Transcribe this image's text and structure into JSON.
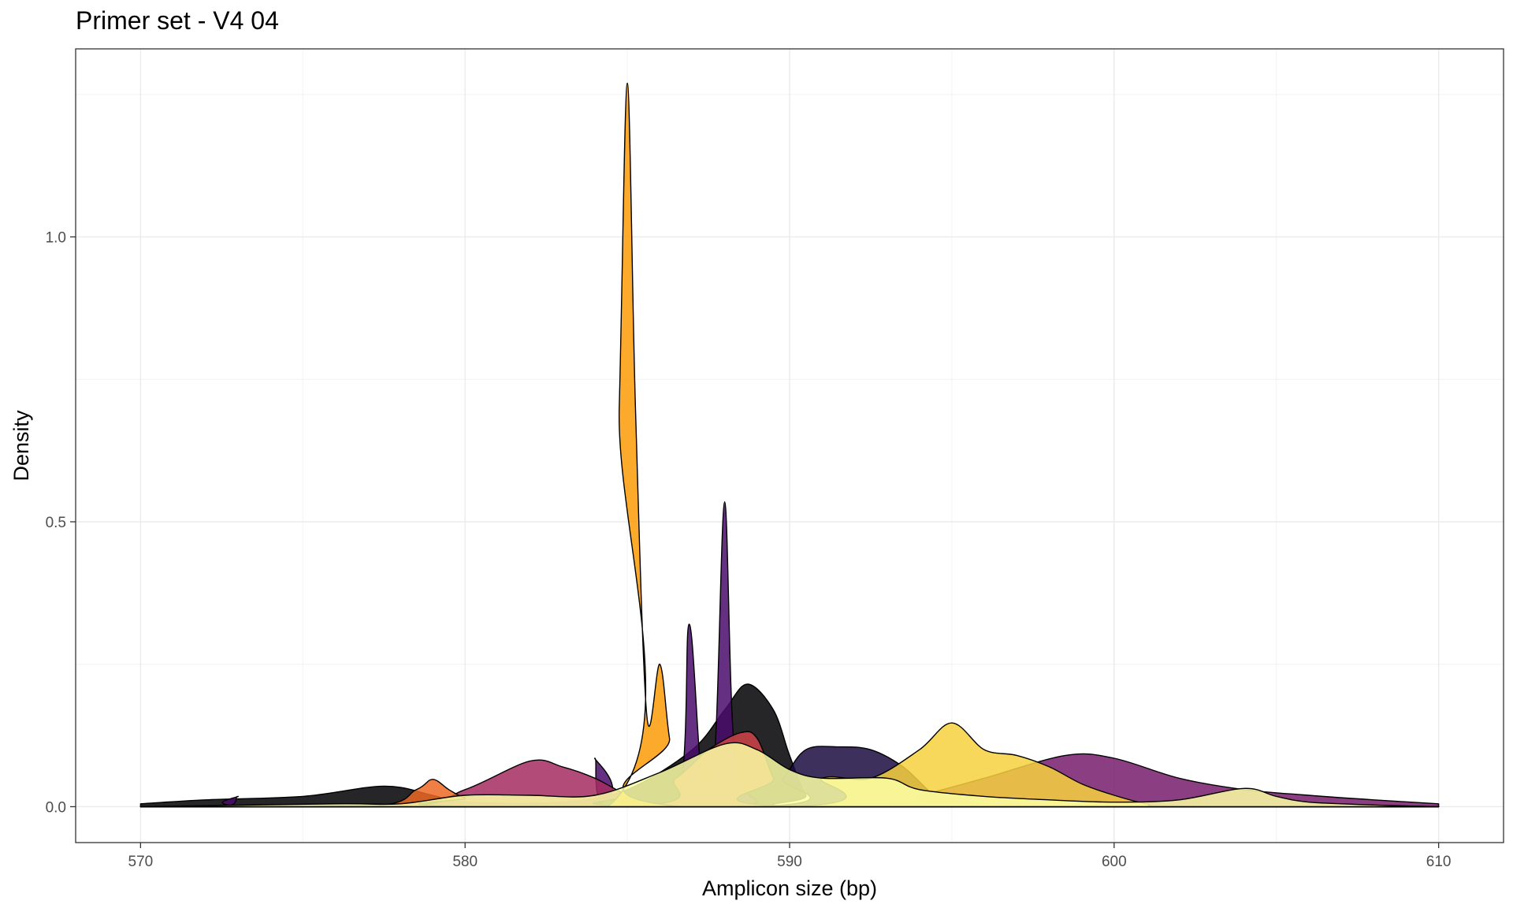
{
  "chart_data": {
    "type": "area",
    "title": "Primer set - V4 04",
    "xlabel": "Amplicon size (bp)",
    "ylabel": "Density",
    "xlim": [
      568,
      612
    ],
    "ylim": [
      -0.063,
      1.33
    ],
    "x_ticks": [
      570,
      580,
      590,
      600,
      610
    ],
    "x_tick_labels": [
      "570",
      "580",
      "590",
      "600",
      "610"
    ],
    "y_ticks": [
      0.0,
      0.5,
      1.0
    ],
    "y_tick_labels": [
      "0.0",
      "0.5",
      "1.0"
    ],
    "grid": true,
    "legend": "none",
    "series": [
      {
        "color": "#000004",
        "points": [
          [
            570,
            0.005
          ],
          [
            572,
            0.012
          ],
          [
            575,
            0.018
          ],
          [
            577.5,
            0.036
          ],
          [
            579,
            0.02
          ],
          [
            580,
            0.008
          ],
          [
            583,
            0.008
          ],
          [
            585,
            0.03
          ],
          [
            587,
            0.1
          ],
          [
            588,
            0.17
          ],
          [
            588.7,
            0.215
          ],
          [
            589.5,
            0.17
          ],
          [
            590,
            0.09
          ],
          [
            590.5,
            0.02
          ],
          [
            591,
            0
          ],
          [
            610,
            0
          ]
        ]
      },
      {
        "color": "#1B0C41",
        "points": [
          [
            570,
            0
          ],
          [
            589,
            0
          ],
          [
            589.8,
            0.05
          ],
          [
            590.5,
            0.1
          ],
          [
            591.5,
            0.105
          ],
          [
            592.5,
            0.1
          ],
          [
            593.5,
            0.07
          ],
          [
            594.5,
            0.02
          ],
          [
            595.5,
            0.01
          ],
          [
            597,
            0
          ],
          [
            610,
            0
          ]
        ]
      },
      {
        "color": "#4A0C6B",
        "points": [
          [
            570,
            0
          ],
          [
            572.6,
            0
          ],
          [
            573,
            0.018
          ],
          [
            573.4,
            0
          ],
          [
            583.7,
            0
          ],
          [
            584,
            0.085
          ],
          [
            584.3,
            0
          ],
          [
            586.5,
            0
          ],
          [
            586.9,
            0.32
          ],
          [
            587.3,
            0.05
          ],
          [
            587.7,
            0.1
          ],
          [
            588,
            0.535
          ],
          [
            588.3,
            0.1
          ],
          [
            589,
            0.01
          ],
          [
            590,
            0
          ],
          [
            610,
            0
          ]
        ]
      },
      {
        "color": "#781C6D",
        "points": [
          [
            570,
            0
          ],
          [
            592,
            0
          ],
          [
            594,
            0.02
          ],
          [
            596,
            0.05
          ],
          [
            598.5,
            0.09
          ],
          [
            600,
            0.085
          ],
          [
            602,
            0.05
          ],
          [
            604,
            0.03
          ],
          [
            606,
            0.02
          ],
          [
            608,
            0.012
          ],
          [
            610,
            0.005
          ]
        ]
      },
      {
        "color": "#A52C60",
        "points": [
          [
            570,
            0
          ],
          [
            578,
            0
          ],
          [
            580,
            0.03
          ],
          [
            582,
            0.08
          ],
          [
            583,
            0.07
          ],
          [
            584,
            0.05
          ],
          [
            585,
            0.02
          ],
          [
            586,
            0
          ],
          [
            610,
            0
          ]
        ]
      },
      {
        "color": "#CF4446",
        "points": [
          [
            570,
            0
          ],
          [
            585,
            0
          ],
          [
            586.5,
            0.05
          ],
          [
            587.5,
            0.1
          ],
          [
            588.5,
            0.13
          ],
          [
            589,
            0.12
          ],
          [
            589.5,
            0.05
          ],
          [
            590,
            0
          ],
          [
            610,
            0
          ]
        ]
      },
      {
        "color": "#ED6925",
        "points": [
          [
            570,
            0
          ],
          [
            577,
            0
          ],
          [
            578.5,
            0.03
          ],
          [
            579,
            0.048
          ],
          [
            579.5,
            0.03
          ],
          [
            580,
            0.015
          ],
          [
            581,
            0
          ],
          [
            610,
            0
          ]
        ]
      },
      {
        "color": "#FB9B06",
        "points": [
          [
            570,
            0
          ],
          [
            584.4,
            0
          ],
          [
            584.75,
            0.7
          ],
          [
            585,
            1.27
          ],
          [
            585.25,
            0.7
          ],
          [
            585.6,
            0.16
          ],
          [
            586,
            0.25
          ],
          [
            586.3,
            0.12
          ],
          [
            586.7,
            0
          ],
          [
            610,
            0
          ]
        ]
      },
      {
        "color": "#F7D13D",
        "points": [
          [
            570,
            0
          ],
          [
            590,
            0
          ],
          [
            591,
            0.05
          ],
          [
            592.5,
            0.05
          ],
          [
            594,
            0.1
          ],
          [
            595,
            0.147
          ],
          [
            596,
            0.1
          ],
          [
            597,
            0.09
          ],
          [
            598,
            0.07
          ],
          [
            599,
            0.04
          ],
          [
            600,
            0.02
          ],
          [
            601,
            0.005
          ],
          [
            602,
            0
          ],
          [
            610,
            0
          ]
        ]
      },
      {
        "color": "#FCFFA4",
        "points": [
          [
            570,
            0
          ],
          [
            576,
            0.005
          ],
          [
            578,
            0.005
          ],
          [
            580,
            0.02
          ],
          [
            582,
            0.02
          ],
          [
            584,
            0.02
          ],
          [
            586,
            0.06
          ],
          [
            588,
            0.11
          ],
          [
            589,
            0.1
          ],
          [
            590,
            0.065
          ],
          [
            591,
            0.05
          ],
          [
            593,
            0.05
          ],
          [
            594,
            0.03
          ],
          [
            596,
            0.018
          ],
          [
            598,
            0.012
          ],
          [
            600,
            0.008
          ],
          [
            602,
            0.012
          ],
          [
            604,
            0.032
          ],
          [
            605,
            0.018
          ],
          [
            606,
            0.008
          ],
          [
            608,
            0.003
          ],
          [
            610,
            0
          ]
        ]
      }
    ]
  }
}
